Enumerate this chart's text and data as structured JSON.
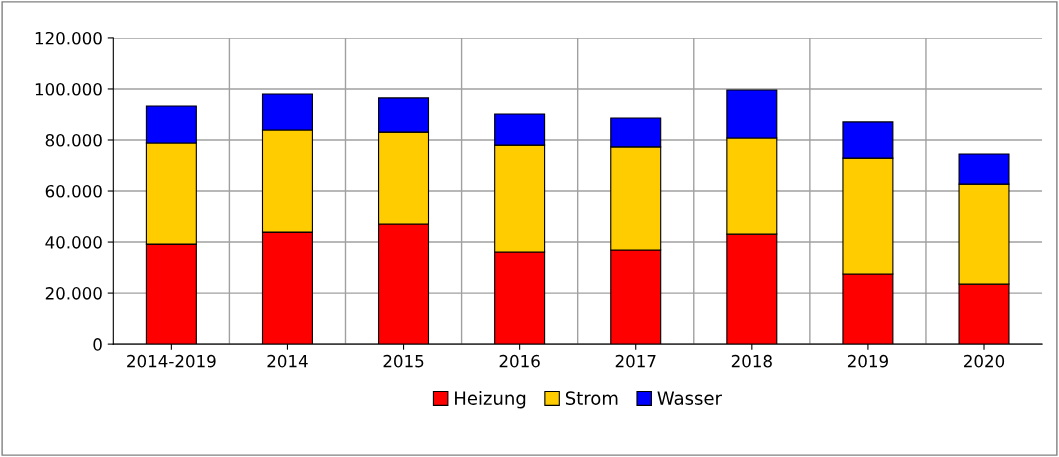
{
  "chart_data": {
    "type": "bar",
    "stacked": true,
    "categories": [
      "2014-2019",
      "2014",
      "2015",
      "2016",
      "2017",
      "2018",
      "2019",
      "2020"
    ],
    "series": [
      {
        "name": "Heizung",
        "color": "#ff0000",
        "values": [
          39200,
          43900,
          47100,
          36100,
          36900,
          43100,
          27500,
          23500
        ]
      },
      {
        "name": "Strom",
        "color": "#ffcc00",
        "values": [
          39600,
          40000,
          36000,
          41900,
          40400,
          37700,
          45400,
          39200
        ]
      },
      {
        "name": "Wasser",
        "color": "#0000ff",
        "values": [
          14500,
          14100,
          13400,
          12200,
          11300,
          18800,
          14200,
          11800
        ]
      }
    ],
    "ylim": [
      0,
      120000
    ],
    "yticks": [
      {
        "value": 0,
        "label": "0"
      },
      {
        "value": 20000,
        "label": "20.000"
      },
      {
        "value": 40000,
        "label": "40.000"
      },
      {
        "value": 60000,
        "label": "60.000"
      },
      {
        "value": 80000,
        "label": "80.000"
      },
      {
        "value": 100000,
        "label": "100.000"
      },
      {
        "value": 120000,
        "label": "120.000"
      }
    ],
    "grid": true,
    "legend": "bottom"
  }
}
